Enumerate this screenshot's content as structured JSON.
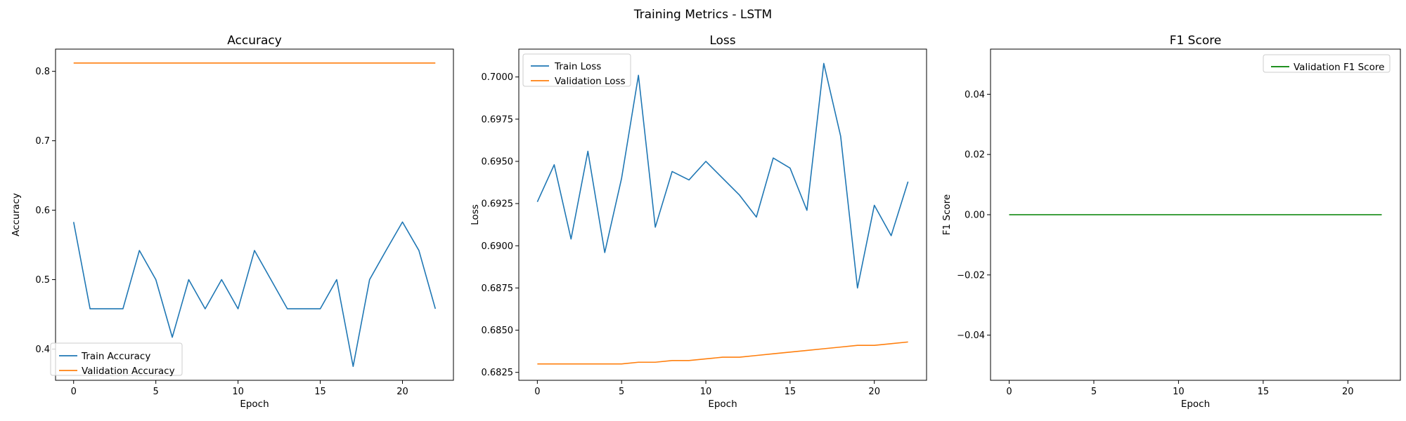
{
  "suptitle": "Training Metrics - LSTM",
  "chart_data": [
    {
      "type": "line",
      "title": "Accuracy",
      "xlabel": "Epoch",
      "ylabel": "Accuracy",
      "xlim": [
        -1.1,
        23.1
      ],
      "ylim": [
        0.355,
        0.832
      ],
      "xticks": [
        0,
        5,
        10,
        15,
        20
      ],
      "yticks": [
        0.4,
        0.5,
        0.6,
        0.7,
        0.8
      ],
      "ytick_labels": [
        "0.4",
        "0.5",
        "0.6",
        "0.7",
        "0.8"
      ],
      "legend_position": "lower-left",
      "x": [
        0,
        1,
        2,
        3,
        4,
        5,
        6,
        7,
        8,
        9,
        10,
        11,
        12,
        13,
        14,
        15,
        16,
        17,
        18,
        19,
        20,
        21,
        22
      ],
      "series": [
        {
          "name": "Train Accuracy",
          "color": "#1f77b4",
          "values": [
            0.583,
            0.458,
            0.458,
            0.458,
            0.542,
            0.5,
            0.417,
            0.5,
            0.458,
            0.5,
            0.458,
            0.542,
            0.5,
            0.458,
            0.458,
            0.458,
            0.5,
            0.375,
            0.5,
            0.542,
            0.583,
            0.542,
            0.458
          ]
        },
        {
          "name": "Validation Accuracy",
          "color": "#ff7f0e",
          "values": [
            0.812,
            0.812,
            0.812,
            0.812,
            0.812,
            0.812,
            0.812,
            0.812,
            0.812,
            0.812,
            0.812,
            0.812,
            0.812,
            0.812,
            0.812,
            0.812,
            0.812,
            0.812,
            0.812,
            0.812,
            0.812,
            0.812,
            0.812
          ]
        }
      ]
    },
    {
      "type": "line",
      "title": "Loss",
      "xlabel": "Epoch",
      "ylabel": "Loss",
      "xlim": [
        -1.1,
        23.1
      ],
      "ylim": [
        0.68203,
        0.70165
      ],
      "xticks": [
        0,
        5,
        10,
        15,
        20
      ],
      "yticks": [
        0.6825,
        0.685,
        0.6875,
        0.69,
        0.6925,
        0.695,
        0.6975,
        0.7
      ],
      "ytick_labels": [
        "0.6825",
        "0.6850",
        "0.6875",
        "0.6900",
        "0.6925",
        "0.6950",
        "0.6975",
        "0.7000"
      ],
      "legend_position": "upper-left",
      "x": [
        0,
        1,
        2,
        3,
        4,
        5,
        6,
        7,
        8,
        9,
        10,
        11,
        12,
        13,
        14,
        15,
        16,
        17,
        18,
        19,
        20,
        21,
        22
      ],
      "series": [
        {
          "name": "Train Loss",
          "color": "#1f77b4",
          "values": [
            0.6926,
            0.6948,
            0.6904,
            0.6956,
            0.6896,
            0.694,
            0.7001,
            0.6911,
            0.6944,
            0.6939,
            0.695,
            0.694,
            0.693,
            0.6917,
            0.6952,
            0.6946,
            0.6921,
            0.7008,
            0.6965,
            0.6875,
            0.6924,
            0.6906,
            0.6938
          ]
        },
        {
          "name": "Validation Loss",
          "color": "#ff7f0e",
          "values": [
            0.683,
            0.683,
            0.683,
            0.683,
            0.683,
            0.683,
            0.6831,
            0.6831,
            0.6832,
            0.6832,
            0.6833,
            0.6834,
            0.6834,
            0.6835,
            0.6836,
            0.6837,
            0.6838,
            0.6839,
            0.684,
            0.6841,
            0.6841,
            0.6842,
            0.6843
          ]
        }
      ]
    },
    {
      "type": "line",
      "title": "F1 Score",
      "xlabel": "Epoch",
      "ylabel": "F1 Score",
      "xlim": [
        -1.1,
        23.1
      ],
      "ylim": [
        -0.055,
        0.055
      ],
      "xticks": [
        0,
        5,
        10,
        15,
        20
      ],
      "yticks": [
        -0.04,
        -0.02,
        0.0,
        0.02,
        0.04
      ],
      "ytick_labels": [
        "−0.04",
        "−0.02",
        "0.00",
        "0.02",
        "0.04"
      ],
      "legend_position": "upper-right",
      "x": [
        0,
        1,
        2,
        3,
        4,
        5,
        6,
        7,
        8,
        9,
        10,
        11,
        12,
        13,
        14,
        15,
        16,
        17,
        18,
        19,
        20,
        21,
        22
      ],
      "series": [
        {
          "name": "Validation F1 Score",
          "color": "#008000",
          "values": [
            0,
            0,
            0,
            0,
            0,
            0,
            0,
            0,
            0,
            0,
            0,
            0,
            0,
            0,
            0,
            0,
            0,
            0,
            0,
            0,
            0,
            0,
            0
          ]
        }
      ]
    }
  ]
}
